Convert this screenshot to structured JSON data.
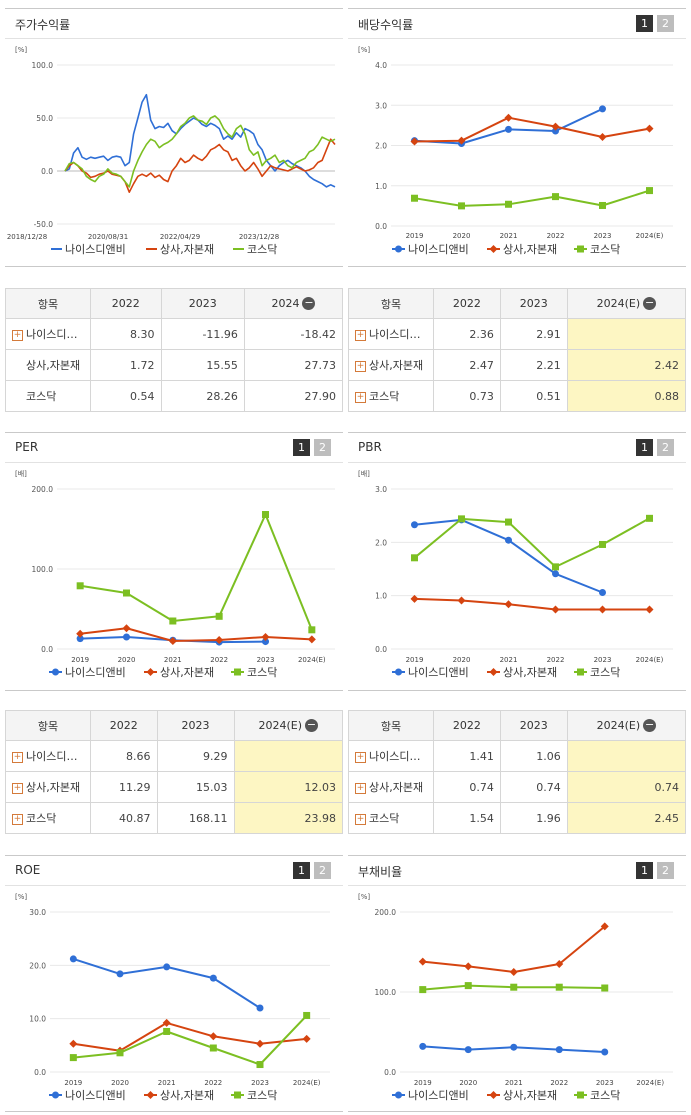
{
  "panels": {
    "stock": {
      "title": "주가수익률",
      "unit": "[%]",
      "legend": [
        "나이스디앤비",
        "상사,자본재",
        "코스닥"
      ],
      "table": {
        "header": [
          "항목",
          "2022",
          "2023",
          "2024"
        ],
        "rows": [
          {
            "label": "나이스디…",
            "values": [
              "8.30",
              "-11.96",
              "-18.42"
            ]
          },
          {
            "label": "상사,자본재",
            "values": [
              "1.72",
              "15.55",
              "27.73"
            ]
          },
          {
            "label": "코스닥",
            "values": [
              "0.54",
              "28.26",
              "27.90"
            ]
          }
        ]
      }
    },
    "dividend": {
      "title": "배당수익률",
      "pager": [
        "1",
        "2"
      ],
      "unit": "[%]",
      "legend": [
        "나이스디앤비",
        "상사,자본재",
        "코스닥"
      ],
      "table": {
        "header": [
          "항목",
          "2022",
          "2023",
          "2024(E)"
        ],
        "rows": [
          {
            "label": "나이스디…",
            "values": [
              "2.36",
              "2.91",
              ""
            ]
          },
          {
            "label": "상사,자본재",
            "values": [
              "2.47",
              "2.21",
              "2.42"
            ]
          },
          {
            "label": "코스닥",
            "values": [
              "0.73",
              "0.51",
              "0.88"
            ]
          }
        ]
      }
    },
    "per": {
      "title": "PER",
      "pager": [
        "1",
        "2"
      ],
      "unit": "[배]",
      "legend": [
        "나이스디앤비",
        "상사,자본재",
        "코스닥"
      ],
      "table": {
        "header": [
          "항목",
          "2022",
          "2023",
          "2024(E)"
        ],
        "rows": [
          {
            "label": "나이스디…",
            "values": [
              "8.66",
              "9.29",
              ""
            ]
          },
          {
            "label": "상사,자본재",
            "values": [
              "11.29",
              "15.03",
              "12.03"
            ]
          },
          {
            "label": "코스닥",
            "values": [
              "40.87",
              "168.11",
              "23.98"
            ]
          }
        ]
      }
    },
    "pbr": {
      "title": "PBR",
      "pager": [
        "1",
        "2"
      ],
      "unit": "[배]",
      "legend": [
        "나이스디앤비",
        "상사,자본재",
        "코스닥"
      ],
      "table": {
        "header": [
          "항목",
          "2022",
          "2023",
          "2024(E)"
        ],
        "rows": [
          {
            "label": "나이스디…",
            "values": [
              "1.41",
              "1.06",
              ""
            ]
          },
          {
            "label": "상사,자본재",
            "values": [
              "0.74",
              "0.74",
              "0.74"
            ]
          },
          {
            "label": "코스닥",
            "values": [
              "1.54",
              "1.96",
              "2.45"
            ]
          }
        ]
      }
    },
    "roe": {
      "title": "ROE",
      "pager": [
        "1",
        "2"
      ],
      "unit": "[%]",
      "legend": [
        "나이스디앤비",
        "상사,자본재",
        "코스닥"
      ]
    },
    "debt": {
      "title": "부채비율",
      "pager": [
        "1",
        "2"
      ],
      "unit": "[%]",
      "legend": [
        "나이스디앤비",
        "상사,자본재",
        "코스닥"
      ]
    }
  },
  "colors": {
    "company": "#2f6fd6",
    "sector": "#d54410",
    "kosdaq": "#7cbf22"
  },
  "chart_data": [
    {
      "id": "stock",
      "type": "line",
      "ylim": [
        -50,
        100
      ],
      "yticks": [
        "100.0",
        "50.0",
        "0.0",
        "-50.0"
      ],
      "ytick_values": [
        100,
        50,
        0,
        -50
      ],
      "xticks": [
        "2018/12/28",
        "2020/08/31",
        "2022/04/29",
        "2023/12/28"
      ],
      "x": [
        "2018/12",
        "2019/01",
        "2019/02",
        "2019/03",
        "2019/04",
        "2019/05",
        "2019/06",
        "2019/07",
        "2019/08",
        "2019/09",
        "2019/10",
        "2019/11",
        "2019/12",
        "2020/01",
        "2020/02",
        "2020/03",
        "2020/04",
        "2020/05",
        "2020/06",
        "2020/07",
        "2020/08",
        "2020/09",
        "2020/10",
        "2020/11",
        "2020/12",
        "2021/01",
        "2021/02",
        "2021/03",
        "2021/04",
        "2021/05",
        "2021/06",
        "2021/07",
        "2021/08",
        "2021/09",
        "2021/10",
        "2021/11",
        "2021/12",
        "2022/01",
        "2022/02",
        "2022/03",
        "2022/04",
        "2022/05",
        "2022/06",
        "2022/07",
        "2022/08",
        "2022/09",
        "2022/10",
        "2022/11",
        "2022/12",
        "2023/01",
        "2023/02",
        "2023/03",
        "2023/04",
        "2023/05",
        "2023/06",
        "2023/07",
        "2023/08",
        "2023/09",
        "2023/10",
        "2023/11",
        "2023/12",
        "2024/01",
        "2024/02",
        "2024/03"
      ],
      "series": [
        {
          "name": "나이스디앤비",
          "color": "#2f6fd6",
          "values": [
            0,
            2,
            17,
            22,
            13,
            11,
            13,
            12,
            13,
            14,
            10,
            13,
            14,
            13,
            5,
            8,
            35,
            50,
            65,
            72,
            48,
            40,
            42,
            41,
            45,
            38,
            35,
            40,
            44,
            47,
            50,
            48,
            44,
            42,
            45,
            43,
            40,
            30,
            33,
            30,
            36,
            32,
            40,
            38,
            35,
            25,
            20,
            10,
            5,
            0,
            5,
            8,
            10,
            7,
            5,
            3,
            0,
            -5,
            -8,
            -10,
            -12,
            -15,
            -13,
            -15
          ]
        },
        {
          "name": "상사,자본재",
          "color": "#d54410",
          "values": [
            0,
            5,
            8,
            5,
            0,
            -2,
            -6,
            -5,
            -3,
            -2,
            0,
            -3,
            -4,
            -5,
            -10,
            -20,
            -12,
            -5,
            -3,
            -5,
            -2,
            -6,
            -4,
            -8,
            -10,
            0,
            5,
            12,
            8,
            10,
            15,
            12,
            10,
            14,
            20,
            22,
            25,
            20,
            18,
            10,
            12,
            5,
            0,
            3,
            8,
            2,
            -5,
            0,
            5,
            3,
            2,
            1,
            0,
            2,
            4,
            2,
            0,
            1,
            3,
            8,
            10,
            20,
            30,
            25
          ]
        },
        {
          "name": "코스닥",
          "color": "#7cbf22",
          "values": [
            0,
            7,
            8,
            5,
            2,
            -5,
            -8,
            -10,
            -5,
            -3,
            2,
            -2,
            -3,
            -5,
            -10,
            -15,
            0,
            10,
            18,
            25,
            30,
            28,
            22,
            25,
            27,
            30,
            35,
            42,
            45,
            50,
            52,
            48,
            47,
            44,
            50,
            52,
            48,
            40,
            35,
            32,
            40,
            43,
            35,
            20,
            15,
            18,
            5,
            10,
            12,
            15,
            8,
            10,
            5,
            3,
            8,
            10,
            12,
            18,
            20,
            25,
            32,
            30,
            28,
            30
          ]
        }
      ]
    },
    {
      "id": "dividend",
      "type": "line",
      "ylim": [
        0,
        4
      ],
      "yticks": [
        "4.0",
        "3.0",
        "2.0",
        "1.0",
        "0.0"
      ],
      "ytick_values": [
        4,
        3,
        2,
        1,
        0
      ],
      "categories": [
        "2019",
        "2020",
        "2021",
        "2022",
        "2023",
        "2024(E)"
      ],
      "series": [
        {
          "name": "나이스디앤비",
          "color": "#2f6fd6",
          "marker": "circle",
          "values": [
            2.12,
            2.05,
            2.4,
            2.36,
            2.91,
            null
          ]
        },
        {
          "name": "상사,자본재",
          "color": "#d54410",
          "marker": "diamond",
          "values": [
            2.1,
            2.12,
            2.69,
            2.47,
            2.21,
            2.42
          ]
        },
        {
          "name": "코스닥",
          "color": "#7cbf22",
          "marker": "square",
          "values": [
            0.69,
            0.5,
            0.54,
            0.73,
            0.51,
            0.88
          ]
        }
      ]
    },
    {
      "id": "per",
      "type": "line",
      "ylim": [
        0,
        200
      ],
      "yticks": [
        "200.0",
        "100.0",
        "0.0"
      ],
      "ytick_values": [
        200,
        100,
        0
      ],
      "categories": [
        "2019",
        "2020",
        "2021",
        "2022",
        "2023",
        "2024(E)"
      ],
      "series": [
        {
          "name": "나이스디앤비",
          "color": "#2f6fd6",
          "marker": "circle",
          "values": [
            13,
            15,
            11,
            8.66,
            9.29,
            null
          ]
        },
        {
          "name": "상사,자본재",
          "color": "#d54410",
          "marker": "diamond",
          "values": [
            19,
            26,
            10,
            11.29,
            15.03,
            12.03
          ]
        },
        {
          "name": "코스닥",
          "color": "#7cbf22",
          "marker": "square",
          "values": [
            79,
            70,
            35,
            40.87,
            168.11,
            23.98
          ]
        }
      ]
    },
    {
      "id": "pbr",
      "type": "line",
      "ylim": [
        0,
        3
      ],
      "yticks": [
        "3.0",
        "2.0",
        "1.0",
        "0.0"
      ],
      "ytick_values": [
        3,
        2,
        1,
        0
      ],
      "categories": [
        "2019",
        "2020",
        "2021",
        "2022",
        "2023",
        "2024(E)"
      ],
      "series": [
        {
          "name": "나이스디앤비",
          "color": "#2f6fd6",
          "marker": "circle",
          "values": [
            2.33,
            2.42,
            2.04,
            1.41,
            1.06,
            null
          ]
        },
        {
          "name": "상사,자본재",
          "color": "#d54410",
          "marker": "diamond",
          "values": [
            0.94,
            0.91,
            0.84,
            0.74,
            0.74,
            0.74
          ]
        },
        {
          "name": "코스닥",
          "color": "#7cbf22",
          "marker": "square",
          "values": [
            1.71,
            2.44,
            2.38,
            1.54,
            1.96,
            2.45
          ]
        }
      ]
    },
    {
      "id": "roe",
      "type": "line",
      "ylim": [
        0,
        30
      ],
      "yticks": [
        "30.0",
        "20.0",
        "10.0",
        "0.0"
      ],
      "ytick_values": [
        30,
        20,
        10,
        0
      ],
      "categories": [
        "2019",
        "2020",
        "2021",
        "2022",
        "2023",
        "2024(E)"
      ],
      "series": [
        {
          "name": "나이스디앤비",
          "color": "#2f6fd6",
          "marker": "circle",
          "values": [
            21.2,
            18.4,
            19.7,
            17.6,
            12.0,
            null
          ]
        },
        {
          "name": "상사,자본재",
          "color": "#d54410",
          "marker": "diamond",
          "values": [
            5.3,
            4.0,
            9.2,
            6.7,
            5.3,
            6.2
          ]
        },
        {
          "name": "코스닥",
          "color": "#7cbf22",
          "marker": "square",
          "values": [
            2.7,
            3.6,
            7.6,
            4.5,
            1.4,
            10.6
          ]
        }
      ]
    },
    {
      "id": "debt",
      "type": "line",
      "ylim": [
        0,
        200
      ],
      "yticks": [
        "200.0",
        "100.0",
        "0.0"
      ],
      "ytick_values": [
        200,
        100,
        0
      ],
      "categories": [
        "2019",
        "2020",
        "2021",
        "2022",
        "2023",
        "2024(E)"
      ],
      "series": [
        {
          "name": "나이스디앤비",
          "color": "#2f6fd6",
          "marker": "circle",
          "values": [
            32,
            28,
            31,
            28,
            25,
            null
          ]
        },
        {
          "name": "상사,자본재",
          "color": "#d54410",
          "marker": "diamond",
          "values": [
            138,
            132,
            125,
            135,
            182,
            null
          ]
        },
        {
          "name": "코스닥",
          "color": "#7cbf22",
          "marker": "square",
          "values": [
            103,
            108,
            106,
            106,
            105,
            null
          ]
        }
      ]
    }
  ]
}
